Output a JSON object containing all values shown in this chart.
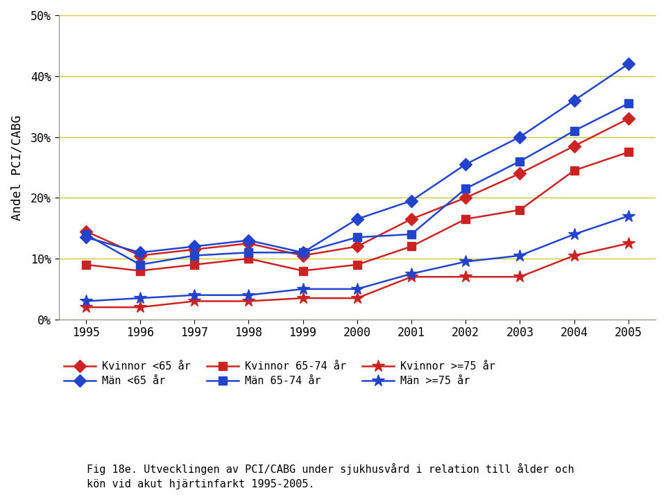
{
  "years": [
    1995,
    1996,
    1997,
    1998,
    1999,
    2000,
    2001,
    2002,
    2003,
    2004,
    2005
  ],
  "kvinnor_lt65": [
    14.5,
    10.5,
    11.5,
    12.5,
    10.5,
    12.0,
    16.5,
    20.0,
    24.0,
    28.5,
    33.0
  ],
  "man_lt65": [
    13.5,
    11.0,
    12.0,
    13.0,
    11.0,
    16.5,
    19.5,
    25.5,
    30.0,
    36.0,
    42.0
  ],
  "kvinnor_6574": [
    9.0,
    8.0,
    9.0,
    10.0,
    8.0,
    9.0,
    12.0,
    16.5,
    18.0,
    24.5,
    27.5
  ],
  "man_6574": [
    14.0,
    9.0,
    10.5,
    11.0,
    11.0,
    13.5,
    14.0,
    21.5,
    26.0,
    31.0,
    35.5
  ],
  "kvinnor_gte75": [
    2.0,
    2.0,
    3.0,
    3.0,
    3.5,
    3.5,
    7.0,
    7.0,
    7.0,
    10.5,
    12.5
  ],
  "man_gte75": [
    3.0,
    3.5,
    4.0,
    4.0,
    5.0,
    5.0,
    7.5,
    9.5,
    10.5,
    14.0,
    17.0
  ],
  "red_color": "#cc2222",
  "blue_color": "#2244cc",
  "ylabel": "Andel PCI/CABG",
  "ylim": [
    0,
    50
  ],
  "yticks": [
    0,
    10,
    20,
    30,
    40,
    50
  ],
  "ytick_labels": [
    "0%",
    "10%",
    "20%",
    "30%",
    "40%",
    "50%"
  ],
  "grid_color": "#c8c832",
  "bg_color": "#ffffff",
  "caption_line1": "Fig 18e. Utvecklingen av PCI/CABG under sjukhusvård i relation till ålder och",
  "caption_line2": "kön vid akut hjärtinfarkt 1995-2005.",
  "legend_entries": [
    "Kvinnor <65 år",
    "Män <65 år",
    "Kvinnor 65-74 år",
    "Män 65-74 år",
    "Kvinnor >=75 år",
    "Män >=75 år"
  ]
}
